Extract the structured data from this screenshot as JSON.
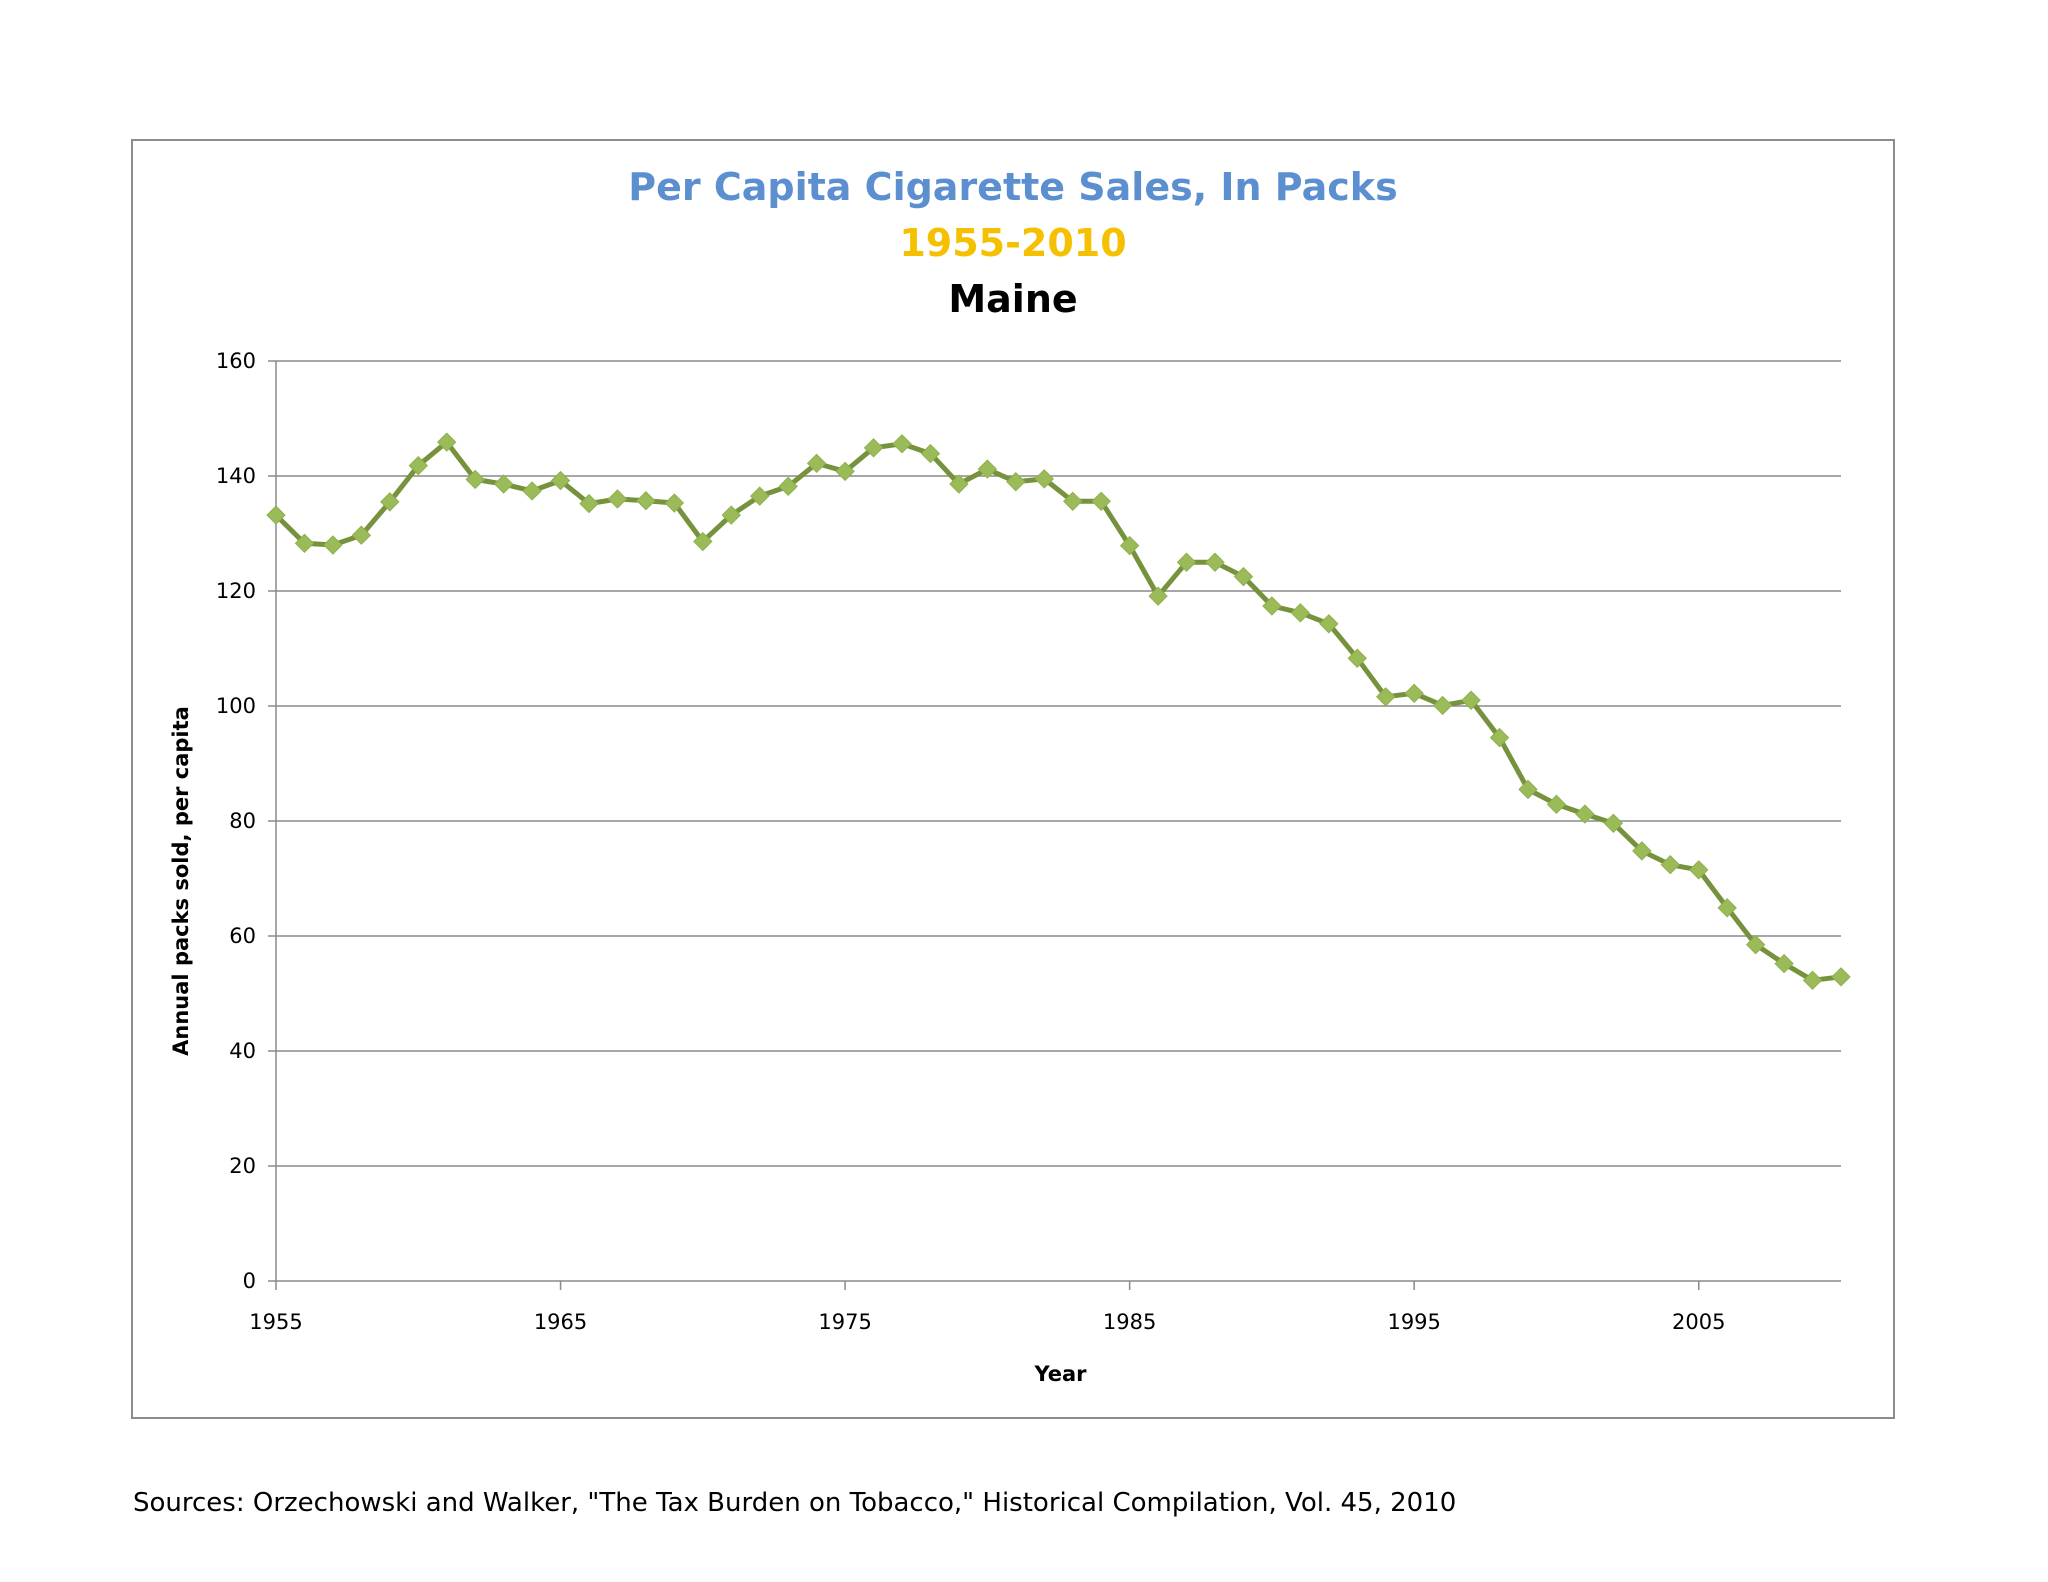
{
  "chart_data": {
    "type": "line",
    "title": "Per Capita Cigarette Sales, In Packs",
    "subtitle": "1955-2010",
    "region": "Maine",
    "xlabel": "Year",
    "ylabel": "Annual packs sold, per capita",
    "xlim": [
      1955,
      2010
    ],
    "ylim": [
      0,
      160
    ],
    "x_ticks": [
      1955,
      1965,
      1975,
      1985,
      1995,
      2005
    ],
    "y_ticks": [
      0,
      20,
      40,
      60,
      80,
      100,
      120,
      140,
      160
    ],
    "grid": true,
    "legend": "none",
    "series": [
      {
        "color": "#76923c",
        "marker_color": "#9bbb59",
        "marker": "diamond",
        "x": [
          1955,
          1956,
          1957,
          1958,
          1959,
          1960,
          1961,
          1962,
          1963,
          1964,
          1965,
          1966,
          1967,
          1968,
          1969,
          1970,
          1971,
          1972,
          1973,
          1974,
          1975,
          1976,
          1977,
          1978,
          1979,
          1980,
          1981,
          1982,
          1983,
          1984,
          1985,
          1986,
          1987,
          1988,
          1989,
          1990,
          1991,
          1992,
          1993,
          1994,
          1995,
          1996,
          1997,
          1998,
          1999,
          2000,
          2001,
          2002,
          2003,
          2004,
          2005,
          2006,
          2007,
          2008,
          2009,
          2010
        ],
        "values": [
          133.2,
          128.3,
          128.0,
          129.7,
          135.5,
          141.8,
          145.9,
          139.4,
          138.6,
          137.4,
          139.2,
          135.2,
          136.0,
          135.7,
          135.3,
          128.6,
          133.2,
          136.5,
          138.2,
          142.2,
          140.8,
          144.9,
          145.6,
          143.9,
          138.6,
          141.2,
          139.0,
          139.5,
          135.6,
          135.6,
          127.9,
          119.1,
          125.0,
          125.0,
          122.5,
          117.4,
          116.2,
          114.3,
          108.3,
          101.6,
          102.2,
          100.1,
          101.0,
          94.5,
          85.5,
          82.9,
          81.2,
          79.6,
          74.8,
          72.4,
          71.5,
          64.9,
          58.5,
          55.2,
          52.3,
          52.9
        ]
      }
    ]
  },
  "source_note": "Sources: Orzechowski and Walker, \"The Tax Burden on Tobacco,\" Historical Compilation, Vol. 45, 2010"
}
